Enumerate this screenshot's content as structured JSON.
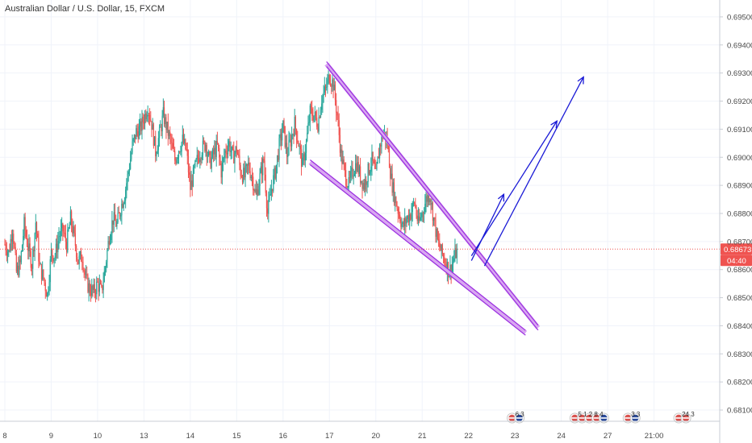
{
  "chart_data": {
    "type": "candlestick",
    "title": "Australian Dollar / U.S. Dollar, 15, FXCM",
    "colors": {
      "up": "#26a69a",
      "down": "#ef5350",
      "channel": "#9b30e0",
      "channel_fill": "#d9a6f2",
      "arrows": "#1a1ad6",
      "last_price_line": "#ef5350",
      "last_price_label_bg": "#ef5350",
      "grid": "#f0f3fa"
    },
    "y_axis": {
      "ticks": [
        "0.69500",
        "0.69400",
        "0.69300",
        "0.69200",
        "0.69100",
        "0.69000",
        "0.68900",
        "0.68800",
        "0.68700",
        "0.68600",
        "0.68500",
        "0.68400",
        "0.68300",
        "0.68200",
        "0.68100"
      ],
      "tick_values": [
        0.695,
        0.694,
        0.693,
        0.692,
        0.691,
        0.69,
        0.689,
        0.688,
        0.687,
        0.686,
        0.685,
        0.684,
        0.683,
        0.682,
        0.681
      ],
      "ylim": [
        0.6806,
        0.6956
      ]
    },
    "x_axis": {
      "ticks": [
        "8",
        "9",
        "10",
        "13",
        "14",
        "15",
        "16",
        "17",
        "20",
        "21",
        "22",
        "23",
        "24",
        "27",
        "21:00"
      ],
      "bar_index": [
        0,
        96,
        192,
        288,
        384,
        480,
        576,
        672,
        768,
        864,
        960,
        1056,
        1152,
        1248,
        1344
      ],
      "xlim_bars": [
        -10,
        1480
      ]
    },
    "last_price": {
      "value": 0.68673,
      "label": "0.68673",
      "countdown": "04:40"
    },
    "price_path": [
      [
        0,
        0.6869
      ],
      [
        8,
        0.6866
      ],
      [
        16,
        0.6875
      ],
      [
        24,
        0.6859
      ],
      [
        32,
        0.6862
      ],
      [
        40,
        0.6876
      ],
      [
        48,
        0.6868
      ],
      [
        56,
        0.6862
      ],
      [
        64,
        0.6877
      ],
      [
        72,
        0.6861
      ],
      [
        80,
        0.6857
      ],
      [
        88,
        0.6851
      ],
      [
        96,
        0.6866
      ],
      [
        104,
        0.6865
      ],
      [
        112,
        0.6872
      ],
      [
        120,
        0.6874
      ],
      [
        128,
        0.6869
      ],
      [
        136,
        0.6878
      ],
      [
        144,
        0.6871
      ],
      [
        152,
        0.6863
      ],
      [
        160,
        0.6865
      ],
      [
        168,
        0.6856
      ],
      [
        176,
        0.6853
      ],
      [
        184,
        0.6852
      ],
      [
        192,
        0.6855
      ],
      [
        200,
        0.6852
      ],
      [
        208,
        0.6861
      ],
      [
        216,
        0.6872
      ],
      [
        224,
        0.6878
      ],
      [
        232,
        0.6876
      ],
      [
        240,
        0.6882
      ],
      [
        248,
        0.6887
      ],
      [
        256,
        0.6895
      ],
      [
        264,
        0.6904
      ],
      [
        272,
        0.6909
      ],
      [
        280,
        0.691
      ],
      [
        288,
        0.6914
      ],
      [
        296,
        0.6918
      ],
      [
        304,
        0.6912
      ],
      [
        312,
        0.6902
      ],
      [
        320,
        0.6908
      ],
      [
        328,
        0.6915
      ],
      [
        336,
        0.691
      ],
      [
        344,
        0.6905
      ],
      [
        352,
        0.6899
      ],
      [
        360,
        0.6903
      ],
      [
        368,
        0.6906
      ],
      [
        376,
        0.6902
      ],
      [
        384,
        0.6889
      ],
      [
        392,
        0.6895
      ],
      [
        400,
        0.69
      ],
      [
        408,
        0.6903
      ],
      [
        416,
        0.6905
      ],
      [
        424,
        0.6898
      ],
      [
        432,
        0.6901
      ],
      [
        440,
        0.6904
      ],
      [
        448,
        0.6895
      ],
      [
        456,
        0.6902
      ],
      [
        464,
        0.6905
      ],
      [
        472,
        0.69
      ],
      [
        480,
        0.6903
      ],
      [
        488,
        0.6895
      ],
      [
        496,
        0.6893
      ],
      [
        504,
        0.6897
      ],
      [
        512,
        0.6893
      ],
      [
        520,
        0.6886
      ],
      [
        528,
        0.6893
      ],
      [
        536,
        0.6899
      ],
      [
        544,
        0.688
      ],
      [
        552,
        0.6889
      ],
      [
        560,
        0.6895
      ],
      [
        568,
        0.6904
      ],
      [
        576,
        0.6911
      ],
      [
        584,
        0.6901
      ],
      [
        592,
        0.6906
      ],
      [
        600,
        0.6912
      ],
      [
        608,
        0.6905
      ],
      [
        616,
        0.6897
      ],
      [
        624,
        0.6905
      ],
      [
        632,
        0.6916
      ],
      [
        640,
        0.6915
      ],
      [
        648,
        0.6912
      ],
      [
        656,
        0.6921
      ],
      [
        664,
        0.6924
      ],
      [
        672,
        0.6929
      ],
      [
        680,
        0.6926
      ],
      [
        688,
        0.6915
      ],
      [
        696,
        0.6901
      ],
      [
        704,
        0.6894
      ],
      [
        712,
        0.689
      ],
      [
        720,
        0.6895
      ],
      [
        728,
        0.6898
      ],
      [
        736,
        0.6893
      ],
      [
        744,
        0.689
      ],
      [
        752,
        0.6895
      ],
      [
        760,
        0.6899
      ],
      [
        768,
        0.6893
      ],
      [
        776,
        0.6904
      ],
      [
        784,
        0.6909
      ],
      [
        792,
        0.6905
      ],
      [
        800,
        0.6892
      ],
      [
        808,
        0.6885
      ],
      [
        816,
        0.688
      ],
      [
        824,
        0.6875
      ],
      [
        832,
        0.6878
      ],
      [
        840,
        0.688
      ],
      [
        848,
        0.6884
      ],
      [
        856,
        0.6876
      ],
      [
        864,
        0.688
      ],
      [
        872,
        0.6885
      ],
      [
        880,
        0.6887
      ],
      [
        888,
        0.6878
      ],
      [
        896,
        0.687
      ],
      [
        904,
        0.6866
      ],
      [
        912,
        0.6863
      ],
      [
        920,
        0.6859
      ],
      [
        928,
        0.6863
      ],
      [
        936,
        0.6867
      ]
    ],
    "channel_upper": [
      [
        666,
        0.69332
      ],
      [
        1104,
        0.68393
      ]
    ],
    "channel_lower": [
      [
        632,
        0.68982
      ],
      [
        1078,
        0.68375
      ]
    ],
    "arrows": [
      {
        "from": [
          966,
          0.68632
        ],
        "to": [
          1033,
          0.68868
        ]
      },
      {
        "from": [
          966,
          0.68649
        ],
        "to": [
          1143,
          0.69129
        ]
      },
      {
        "from": [
          993,
          0.68613
        ],
        "to": [
          1198,
          0.69286
        ]
      }
    ],
    "event_badges": [
      {
        "label": "6 3",
        "x_bar": 1050,
        "flags": [
          "us",
          "au"
        ]
      },
      {
        "label": "5 1 2 8 4",
        "x_bar": 1180,
        "flags": [
          "us",
          "us",
          "us",
          "us",
          "au"
        ]
      },
      {
        "label": "3 3",
        "x_bar": 1290,
        "flags": [
          "us",
          "au"
        ]
      },
      {
        "label": "24 3",
        "x_bar": 1395,
        "flags": [
          "us",
          "us"
        ]
      }
    ]
  }
}
